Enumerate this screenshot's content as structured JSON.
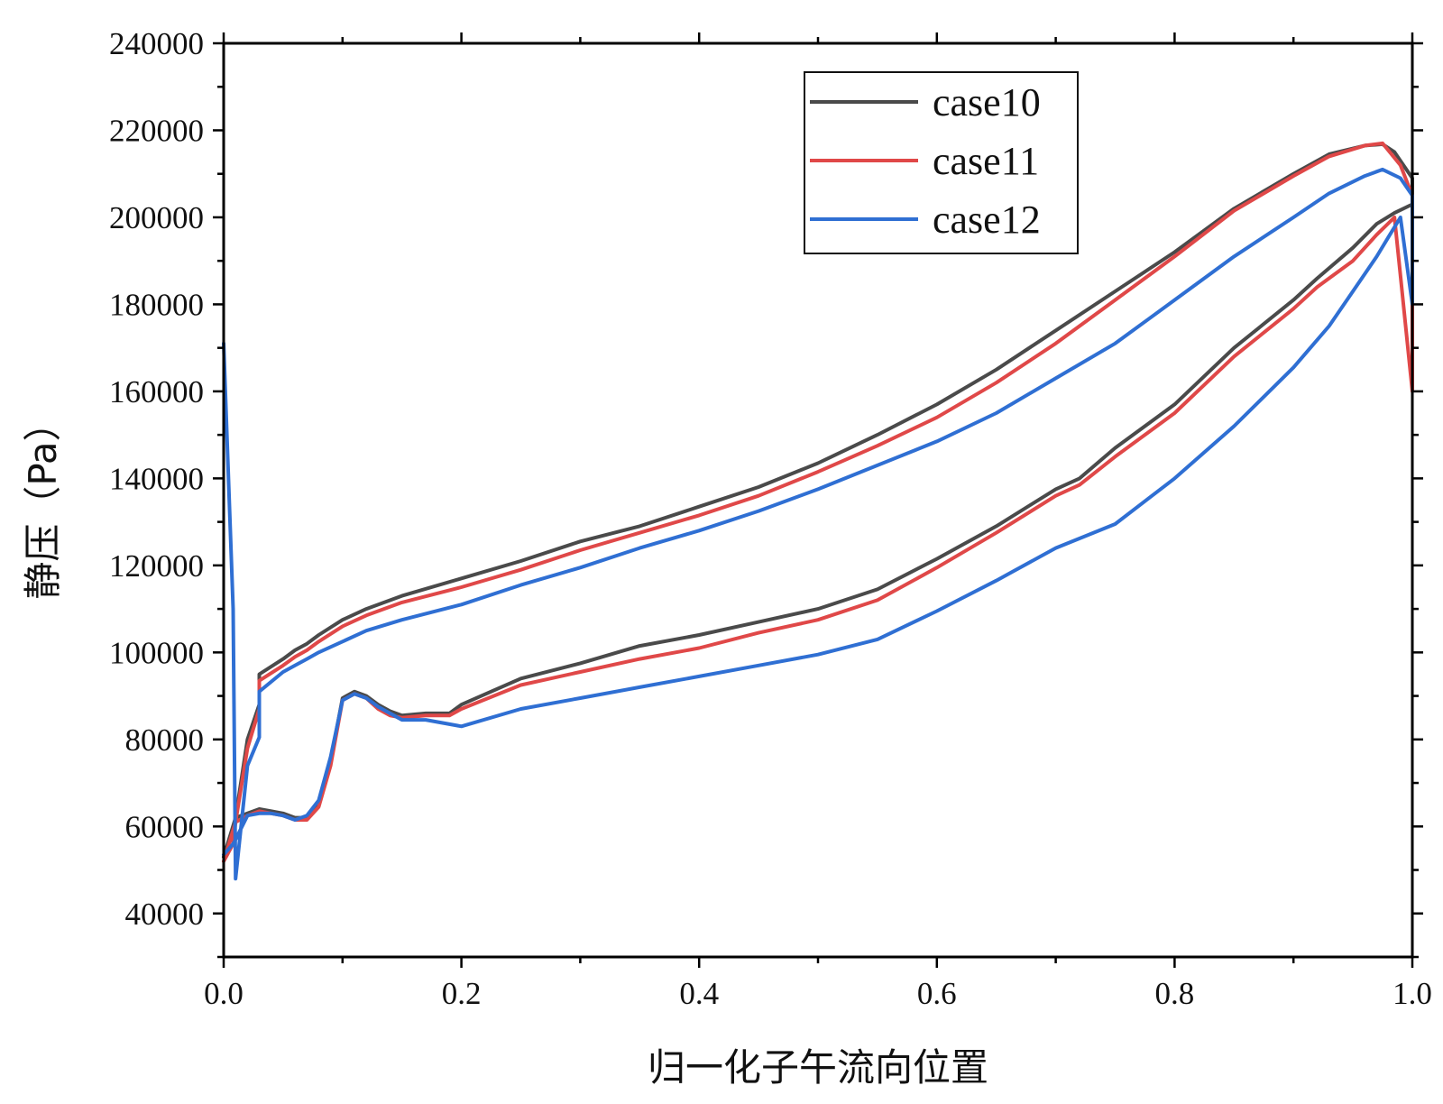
{
  "chart_data": {
    "type": "line",
    "title": "",
    "xlabel": "归一化子午流向位置",
    "ylabel": "静压（Pa）",
    "xlim": [
      0.0,
      1.0
    ],
    "ylim": [
      30000,
      240000
    ],
    "x_ticks": [
      "0.0",
      "0.2",
      "0.4",
      "0.6",
      "0.8",
      "1.0"
    ],
    "y_ticks": [
      "40000",
      "60000",
      "80000",
      "100000",
      "120000",
      "140000",
      "160000",
      "180000",
      "200000",
      "220000",
      "240000"
    ],
    "grid": false,
    "legend_position": "top-right",
    "colors": {
      "case10": "#4a4a4a",
      "case11": "#e04848",
      "case12": "#2f6fd3"
    },
    "series": [
      {
        "name": "case10",
        "x": [
          0.0,
          0.008,
          0.01,
          0.02,
          0.03,
          0.03,
          0.05,
          0.06,
          0.07,
          0.08,
          0.1,
          0.12,
          0.15,
          0.2,
          0.25,
          0.3,
          0.35,
          0.4,
          0.45,
          0.5,
          0.55,
          0.6,
          0.65,
          0.7,
          0.75,
          0.8,
          0.85,
          0.9,
          0.93,
          0.96,
          0.975,
          0.985,
          1.0,
          1.0,
          0.985,
          0.97,
          0.95,
          0.92,
          0.9,
          0.85,
          0.8,
          0.75,
          0.72,
          0.7,
          0.65,
          0.6,
          0.55,
          0.5,
          0.45,
          0.4,
          0.35,
          0.3,
          0.25,
          0.2,
          0.19,
          0.17,
          0.15,
          0.14,
          0.13,
          0.12,
          0.11,
          0.1,
          0.09,
          0.08,
          0.07,
          0.06,
          0.05,
          0.04,
          0.03,
          0.02,
          0.01,
          0.0
        ],
        "y": [
          53000,
          56000,
          62000,
          80000,
          88000,
          95000,
          98500,
          100500,
          102000,
          104000,
          107500,
          110000,
          113000,
          117000,
          121000,
          125500,
          129000,
          133500,
          138000,
          143500,
          150000,
          157000,
          165000,
          174000,
          183000,
          192000,
          202000,
          210000,
          214500,
          216500,
          216800,
          215000,
          209000,
          203000,
          201000,
          198500,
          193000,
          186000,
          181000,
          170000,
          157000,
          147000,
          140000,
          137500,
          129000,
          121500,
          114500,
          110000,
          107000,
          104000,
          101500,
          97500,
          94000,
          88000,
          86000,
          86000,
          85500,
          86500,
          88000,
          90000,
          91000,
          89500,
          75000,
          65000,
          62000,
          62000,
          63000,
          63500,
          64000,
          63000,
          62000,
          53000
        ]
      },
      {
        "name": "case11",
        "x": [
          0.0,
          0.008,
          0.01,
          0.02,
          0.03,
          0.03,
          0.05,
          0.06,
          0.07,
          0.08,
          0.1,
          0.12,
          0.15,
          0.2,
          0.25,
          0.3,
          0.35,
          0.4,
          0.45,
          0.5,
          0.55,
          0.6,
          0.65,
          0.7,
          0.75,
          0.8,
          0.85,
          0.9,
          0.93,
          0.96,
          0.975,
          0.99,
          1.0,
          1.0,
          0.985,
          0.97,
          0.95,
          0.92,
          0.9,
          0.85,
          0.8,
          0.75,
          0.72,
          0.7,
          0.65,
          0.6,
          0.55,
          0.5,
          0.45,
          0.4,
          0.35,
          0.3,
          0.25,
          0.2,
          0.19,
          0.17,
          0.15,
          0.14,
          0.13,
          0.12,
          0.11,
          0.1,
          0.09,
          0.08,
          0.07,
          0.06,
          0.05,
          0.04,
          0.03,
          0.02,
          0.01,
          0.0
        ],
        "y": [
          52000,
          56000,
          61000,
          78000,
          87000,
          93500,
          97000,
          99000,
          100500,
          102500,
          106000,
          108500,
          111500,
          115000,
          119000,
          123500,
          127500,
          131500,
          136000,
          141500,
          147500,
          154000,
          162000,
          171000,
          181000,
          191000,
          201500,
          209500,
          214000,
          216500,
          217000,
          212000,
          205000,
          160000,
          200000,
          196000,
          190000,
          184000,
          179000,
          168000,
          155000,
          145000,
          138500,
          136000,
          127500,
          119500,
          112000,
          107500,
          104500,
          101000,
          98500,
          95500,
          92500,
          87000,
          85500,
          85500,
          85000,
          85500,
          87000,
          89500,
          90500,
          89000,
          74000,
          64500,
          61500,
          61500,
          62500,
          63000,
          63500,
          62500,
          61000,
          52000
        ]
      },
      {
        "name": "case12",
        "x": [
          0.0,
          0.008,
          0.01,
          0.02,
          0.03,
          0.03,
          0.05,
          0.06,
          0.07,
          0.08,
          0.1,
          0.12,
          0.15,
          0.2,
          0.25,
          0.3,
          0.35,
          0.4,
          0.45,
          0.5,
          0.55,
          0.6,
          0.65,
          0.7,
          0.75,
          0.8,
          0.85,
          0.9,
          0.93,
          0.96,
          0.975,
          0.99,
          1.0,
          1.0,
          0.99,
          0.98,
          0.97,
          0.95,
          0.93,
          0.9,
          0.85,
          0.8,
          0.75,
          0.7,
          0.65,
          0.6,
          0.55,
          0.5,
          0.45,
          0.4,
          0.35,
          0.3,
          0.25,
          0.2,
          0.19,
          0.17,
          0.15,
          0.14,
          0.13,
          0.12,
          0.11,
          0.1,
          0.09,
          0.08,
          0.07,
          0.06,
          0.05,
          0.04,
          0.03,
          0.02,
          0.01,
          0.008,
          0.0
        ],
        "y": [
          171000,
          110000,
          48000,
          74000,
          80500,
          91000,
          95500,
          97000,
          98500,
          100000,
          102500,
          105000,
          107500,
          111000,
          115500,
          119500,
          124000,
          128000,
          132500,
          137500,
          143000,
          148500,
          155000,
          163000,
          171000,
          181000,
          191000,
          200000,
          205500,
          209500,
          211000,
          209000,
          205000,
          180000,
          200000,
          195500,
          191000,
          183000,
          175000,
          165500,
          152000,
          140000,
          129500,
          124000,
          116500,
          109500,
          103000,
          99500,
          97000,
          94500,
          92000,
          89500,
          87000,
          83000,
          83500,
          84500,
          84500,
          86000,
          87500,
          89500,
          90500,
          89000,
          76000,
          66000,
          62500,
          61500,
          62500,
          63000,
          63000,
          62500,
          57000,
          56000,
          53500
        ]
      }
    ]
  }
}
